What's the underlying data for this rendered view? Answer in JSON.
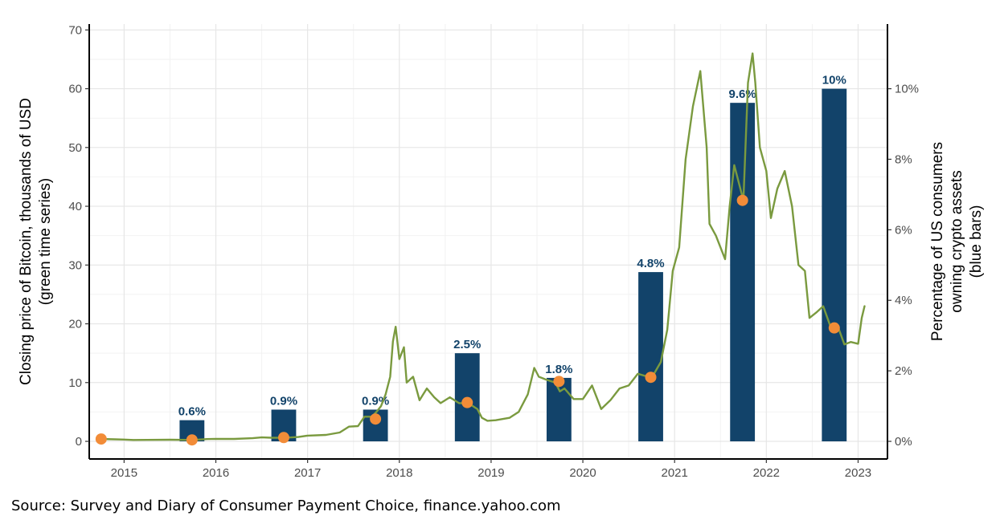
{
  "chart_data": {
    "type": "bar+line",
    "left_axis": {
      "title_lines": [
        "Closing price of Bitcoin, thousands of USD",
        "(green time series)"
      ],
      "ticks": [
        0,
        10,
        20,
        30,
        40,
        50,
        60,
        70
      ],
      "range": [
        -3,
        71
      ]
    },
    "right_axis": {
      "title_lines": [
        "Percentage of US consumers",
        "owning crypto assets",
        "(blue bars)"
      ],
      "ticks": [
        0,
        2,
        4,
        6,
        8,
        10
      ],
      "tick_labels": [
        "0%",
        "2%",
        "4%",
        "6%",
        "8%",
        "10%"
      ],
      "max_ref": 11.667
    },
    "x_axis": {
      "range": [
        2014.62,
        2023.32
      ],
      "ticks": [
        2015,
        2016,
        2017,
        2018,
        2019,
        2020,
        2021,
        2022,
        2023
      ],
      "tick_labels": [
        "2015",
        "2016",
        "2017",
        "2018",
        "2019",
        "2020",
        "2021",
        "2022",
        "2023"
      ]
    },
    "bars": {
      "series_name": "Percentage of US consumers owning crypto assets",
      "color": "#12436a",
      "width_years": 0.27,
      "x": [
        2015.74,
        2016.74,
        2017.74,
        2018.74,
        2019.74,
        2020.74,
        2021.74,
        2022.74
      ],
      "values": [
        0.6,
        0.9,
        0.9,
        2.5,
        1.8,
        4.8,
        9.6,
        10.0
      ],
      "labels": [
        "0.6%",
        "0.9%",
        "0.9%",
        "2.5%",
        "1.8%",
        "4.8%",
        "9.6%",
        "10%"
      ]
    },
    "line": {
      "series_name": "Closing price of Bitcoin, thousands of USD",
      "color": "#7a9a3f",
      "points": [
        [
          2014.75,
          0.4
        ],
        [
          2014.9,
          0.35
        ],
        [
          2015.0,
          0.3
        ],
        [
          2015.1,
          0.23
        ],
        [
          2015.25,
          0.25
        ],
        [
          2015.5,
          0.27
        ],
        [
          2015.75,
          0.24
        ],
        [
          2015.9,
          0.38
        ],
        [
          2016.0,
          0.43
        ],
        [
          2016.2,
          0.42
        ],
        [
          2016.4,
          0.53
        ],
        [
          2016.5,
          0.67
        ],
        [
          2016.6,
          0.62
        ],
        [
          2016.75,
          0.61
        ],
        [
          2016.9,
          0.74
        ],
        [
          2017.0,
          0.97
        ],
        [
          2017.2,
          1.1
        ],
        [
          2017.35,
          1.5
        ],
        [
          2017.45,
          2.5
        ],
        [
          2017.55,
          2.6
        ],
        [
          2017.62,
          4.2
        ],
        [
          2017.7,
          4.2
        ],
        [
          2017.75,
          5.0
        ],
        [
          2017.8,
          6.0
        ],
        [
          2017.85,
          8.0
        ],
        [
          2017.9,
          11.0
        ],
        [
          2017.93,
          17.0
        ],
        [
          2017.96,
          19.5
        ],
        [
          2018.0,
          14.0
        ],
        [
          2018.05,
          16.0
        ],
        [
          2018.08,
          10.0
        ],
        [
          2018.15,
          11.0
        ],
        [
          2018.22,
          7.0
        ],
        [
          2018.3,
          9.0
        ],
        [
          2018.38,
          7.5
        ],
        [
          2018.45,
          6.5
        ],
        [
          2018.55,
          7.5
        ],
        [
          2018.65,
          6.5
        ],
        [
          2018.75,
          6.5
        ],
        [
          2018.85,
          5.5
        ],
        [
          2018.9,
          4.0
        ],
        [
          2018.96,
          3.5
        ],
        [
          2019.05,
          3.6
        ],
        [
          2019.2,
          4.0
        ],
        [
          2019.3,
          5.0
        ],
        [
          2019.4,
          8.0
        ],
        [
          2019.47,
          12.5
        ],
        [
          2019.52,
          11.0
        ],
        [
          2019.6,
          10.5
        ],
        [
          2019.7,
          10.0
        ],
        [
          2019.75,
          8.5
        ],
        [
          2019.8,
          9.0
        ],
        [
          2019.9,
          7.2
        ],
        [
          2020.0,
          7.2
        ],
        [
          2020.1,
          9.5
        ],
        [
          2020.2,
          5.5
        ],
        [
          2020.3,
          7.0
        ],
        [
          2020.4,
          9.0
        ],
        [
          2020.5,
          9.5
        ],
        [
          2020.6,
          11.5
        ],
        [
          2020.75,
          10.8
        ],
        [
          2020.85,
          13.5
        ],
        [
          2020.92,
          19.0
        ],
        [
          2020.98,
          29.0
        ],
        [
          2021.05,
          33.0
        ],
        [
          2021.12,
          48.0
        ],
        [
          2021.2,
          57.0
        ],
        [
          2021.28,
          63.0
        ],
        [
          2021.35,
          50.0
        ],
        [
          2021.38,
          37.0
        ],
        [
          2021.45,
          35.0
        ],
        [
          2021.5,
          33.0
        ],
        [
          2021.55,
          31.0
        ],
        [
          2021.6,
          40.0
        ],
        [
          2021.65,
          47.0
        ],
        [
          2021.7,
          44.0
        ],
        [
          2021.75,
          41.0
        ],
        [
          2021.8,
          61.0
        ],
        [
          2021.85,
          66.0
        ],
        [
          2021.88,
          61.0
        ],
        [
          2021.93,
          50.0
        ],
        [
          2022.0,
          46.0
        ],
        [
          2022.05,
          38.0
        ],
        [
          2022.12,
          43.0
        ],
        [
          2022.2,
          46.0
        ],
        [
          2022.28,
          40.0
        ],
        [
          2022.35,
          30.0
        ],
        [
          2022.42,
          29.0
        ],
        [
          2022.47,
          21.0
        ],
        [
          2022.55,
          22.0
        ],
        [
          2022.62,
          23.0
        ],
        [
          2022.7,
          19.5
        ],
        [
          2022.78,
          19.5
        ],
        [
          2022.85,
          16.5
        ],
        [
          2022.92,
          16.9
        ],
        [
          2023.0,
          16.6
        ],
        [
          2023.04,
          21.0
        ],
        [
          2023.07,
          23.0
        ]
      ]
    },
    "dots": {
      "color": "#f28c38",
      "points": [
        [
          2014.75,
          0.4
        ],
        [
          2015.74,
          0.25
        ],
        [
          2016.74,
          0.65
        ],
        [
          2017.74,
          3.8
        ],
        [
          2018.74,
          6.6
        ],
        [
          2019.74,
          10.2
        ],
        [
          2020.74,
          10.9
        ],
        [
          2021.74,
          41.0
        ],
        [
          2022.74,
          19.3
        ]
      ]
    },
    "gridlines": true
  },
  "source": "Source: Survey and Diary of Consumer Payment Choice, finance.yahoo.com"
}
